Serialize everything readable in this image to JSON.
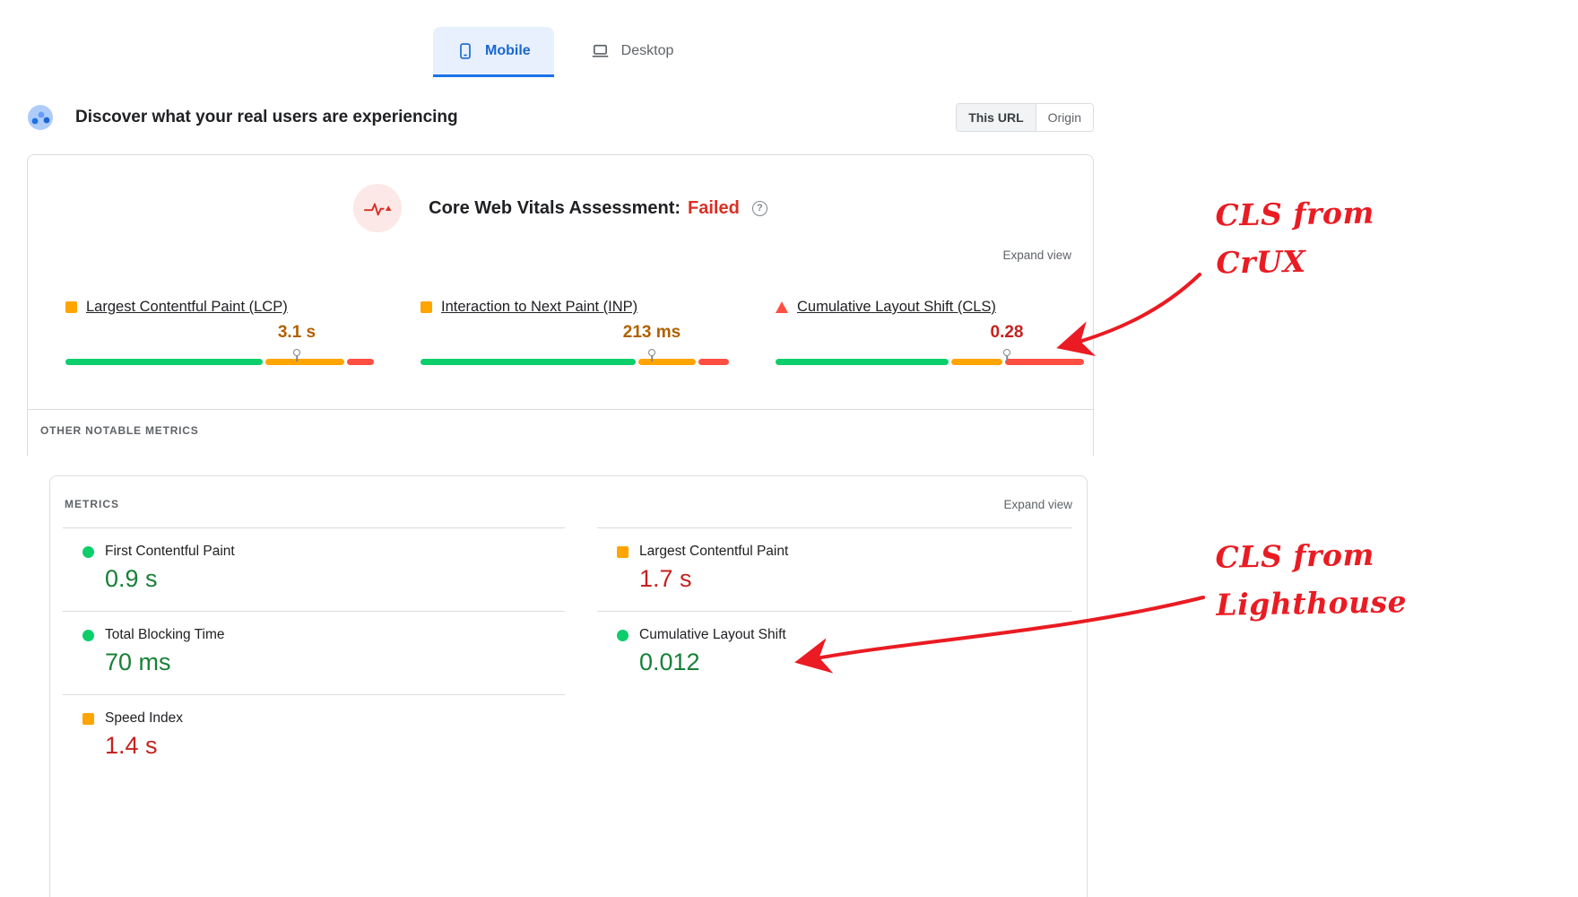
{
  "tabs": [
    {
      "label": "Mobile"
    },
    {
      "label": "Desktop"
    }
  ],
  "field": {
    "title": "Discover what your real users are experiencing",
    "scope": [
      {
        "label": "This URL"
      },
      {
        "label": "Origin"
      }
    ],
    "assessment_label": "Core Web Vitals Assessment:",
    "assessment_value": "Failed",
    "help_glyph": "?",
    "expand_view": "Expand view",
    "metrics": [
      {
        "name": "Largest Contentful Paint (LCP)",
        "value": "3.1 s",
        "status": "needs-improvement",
        "bar": {
          "green": 65,
          "orange": 26,
          "red": 9,
          "marker": 75
        }
      },
      {
        "name": "Interaction to Next Paint (INP)",
        "value": "213 ms",
        "status": "needs-improvement",
        "bar": {
          "green": 71,
          "orange": 19,
          "red": 10,
          "marker": 75
        }
      },
      {
        "name": "Cumulative Layout Shift (CLS)",
        "value": "0.28",
        "status": "poor",
        "bar": {
          "green": 57,
          "orange": 17,
          "red": 26,
          "marker": 75
        }
      }
    ],
    "other_metrics_header": "OTHER NOTABLE METRICS"
  },
  "lab": {
    "header": "METRICS",
    "expand_view": "Expand view",
    "left_metrics": [
      {
        "name": "First Contentful Paint",
        "value": "0.9 s",
        "status": "good"
      },
      {
        "name": "Total Blocking Time",
        "value": "70 ms",
        "status": "good"
      },
      {
        "name": "Speed Index",
        "value": "1.4 s",
        "status": "needs-improvement"
      }
    ],
    "right_metrics": [
      {
        "name": "Largest Contentful Paint",
        "value": "1.7 s",
        "status": "needs-improvement"
      },
      {
        "name": "Cumulative Layout Shift",
        "value": "0.012",
        "status": "good"
      }
    ]
  },
  "annotations": [
    {
      "line1": "CLS from",
      "line2": "CrUX"
    },
    {
      "line1": "CLS from",
      "line2": "Lighthouse"
    }
  ],
  "colors": {
    "accent_blue": "#1a73e8",
    "tab_selected_bg": "#e8f0fe",
    "failed_red": "#d93025",
    "amber_value": "#b06000",
    "poor_red": "#c5221f",
    "good_green": "#188038",
    "bar_green": "#0cce6b",
    "bar_orange": "#ffa400",
    "bar_red": "#ff4e42",
    "annotation_red": "#ea1b22"
  }
}
